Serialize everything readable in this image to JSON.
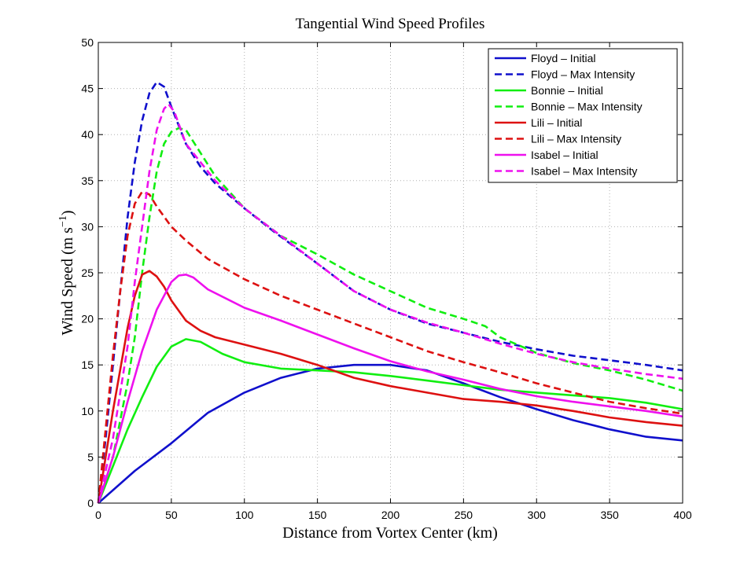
{
  "chart_data": {
    "type": "line",
    "title": "Tangential Wind Speed Profiles",
    "xlabel": "Distance from Vortex Center (km)",
    "ylabel": "Wind Speed (m s",
    "ylabel_exp": "−1",
    "ylabel_close": ")",
    "xlim": [
      0,
      400
    ],
    "ylim": [
      0,
      50
    ],
    "xticks": [
      0,
      50,
      100,
      150,
      200,
      250,
      300,
      350,
      400
    ],
    "yticks": [
      0,
      5,
      10,
      15,
      20,
      25,
      30,
      35,
      40,
      45,
      50
    ],
    "grid": true,
    "legend_position": "top-right",
    "series": [
      {
        "name": "Floyd – Initial",
        "color": "#1010cc",
        "dash": "solid",
        "points": [
          [
            0,
            0
          ],
          [
            25,
            3.5
          ],
          [
            50,
            6.5
          ],
          [
            75,
            9.8
          ],
          [
            100,
            12
          ],
          [
            125,
            13.6
          ],
          [
            150,
            14.6
          ],
          [
            175,
            15
          ],
          [
            200,
            15
          ],
          [
            225,
            14.4
          ],
          [
            250,
            13
          ],
          [
            275,
            11.5
          ],
          [
            300,
            10.2
          ],
          [
            325,
            9
          ],
          [
            350,
            8
          ],
          [
            375,
            7.2
          ],
          [
            400,
            6.8
          ]
        ]
      },
      {
        "name": "Floyd – Max Intensity",
        "color": "#1010cc",
        "dash": "dashed",
        "points": [
          [
            0,
            0
          ],
          [
            5,
            7
          ],
          [
            10,
            15
          ],
          [
            15,
            23
          ],
          [
            20,
            31
          ],
          [
            25,
            37
          ],
          [
            30,
            41.5
          ],
          [
            35,
            44.5
          ],
          [
            40,
            45.7
          ],
          [
            45,
            45.2
          ],
          [
            50,
            43
          ],
          [
            60,
            39
          ],
          [
            70,
            36.5
          ],
          [
            80,
            34.7
          ],
          [
            100,
            32
          ],
          [
            120,
            29.5
          ],
          [
            150,
            26
          ],
          [
            175,
            23
          ],
          [
            200,
            21
          ],
          [
            225,
            19.5
          ],
          [
            250,
            18.5
          ],
          [
            275,
            17.5
          ],
          [
            300,
            16.7
          ],
          [
            325,
            16
          ],
          [
            350,
            15.5
          ],
          [
            375,
            15
          ],
          [
            400,
            14.4
          ]
        ]
      },
      {
        "name": "Bonnie – Initial",
        "color": "#11ee11",
        "dash": "solid",
        "points": [
          [
            0,
            0
          ],
          [
            10,
            4
          ],
          [
            20,
            8
          ],
          [
            30,
            11.5
          ],
          [
            40,
            14.8
          ],
          [
            50,
            17
          ],
          [
            60,
            17.8
          ],
          [
            70,
            17.5
          ],
          [
            85,
            16.2
          ],
          [
            100,
            15.3
          ],
          [
            125,
            14.6
          ],
          [
            150,
            14.4
          ],
          [
            175,
            14.2
          ],
          [
            200,
            13.8
          ],
          [
            225,
            13.3
          ],
          [
            250,
            12.8
          ],
          [
            275,
            12.3
          ],
          [
            300,
            12
          ],
          [
            325,
            11.7
          ],
          [
            350,
            11.4
          ],
          [
            375,
            10.9
          ],
          [
            400,
            10.2
          ]
        ]
      },
      {
        "name": "Bonnie – Max Intensity",
        "color": "#11ee11",
        "dash": "dashed",
        "points": [
          [
            0,
            0
          ],
          [
            10,
            5
          ],
          [
            20,
            13
          ],
          [
            25,
            18
          ],
          [
            30,
            25
          ],
          [
            35,
            31
          ],
          [
            40,
            36
          ],
          [
            45,
            39
          ],
          [
            50,
            40.3
          ],
          [
            55,
            40.7
          ],
          [
            60,
            40.5
          ],
          [
            70,
            38
          ],
          [
            80,
            35.5
          ],
          [
            100,
            32
          ],
          [
            125,
            29
          ],
          [
            150,
            27
          ],
          [
            175,
            24.8
          ],
          [
            200,
            23
          ],
          [
            225,
            21.2
          ],
          [
            250,
            20
          ],
          [
            265,
            19.2
          ],
          [
            275,
            18
          ],
          [
            300,
            16.3
          ],
          [
            325,
            15.2
          ],
          [
            350,
            14.4
          ],
          [
            375,
            13.4
          ],
          [
            400,
            12.2
          ]
        ]
      },
      {
        "name": "Lili – Initial",
        "color": "#dd1111",
        "dash": "solid",
        "points": [
          [
            0,
            0
          ],
          [
            5,
            5
          ],
          [
            10,
            10
          ],
          [
            15,
            14.5
          ],
          [
            20,
            19
          ],
          [
            25,
            22.5
          ],
          [
            30,
            24.8
          ],
          [
            35,
            25.2
          ],
          [
            40,
            24.6
          ],
          [
            45,
            23.5
          ],
          [
            50,
            22
          ],
          [
            60,
            19.8
          ],
          [
            70,
            18.7
          ],
          [
            80,
            18
          ],
          [
            100,
            17.2
          ],
          [
            125,
            16.2
          ],
          [
            150,
            15
          ],
          [
            175,
            13.6
          ],
          [
            200,
            12.7
          ],
          [
            225,
            12
          ],
          [
            250,
            11.3
          ],
          [
            275,
            11
          ],
          [
            300,
            10.6
          ],
          [
            325,
            10
          ],
          [
            350,
            9.3
          ],
          [
            375,
            8.8
          ],
          [
            400,
            8.4
          ]
        ]
      },
      {
        "name": "Lili – Max Intensity",
        "color": "#dd1111",
        "dash": "dashed",
        "points": [
          [
            0,
            0
          ],
          [
            5,
            8
          ],
          [
            10,
            16
          ],
          [
            15,
            23
          ],
          [
            20,
            29
          ],
          [
            25,
            32.5
          ],
          [
            30,
            33.8
          ],
          [
            35,
            33.5
          ],
          [
            40,
            32.2
          ],
          [
            50,
            30
          ],
          [
            60,
            28.5
          ],
          [
            75,
            26.5
          ],
          [
            100,
            24.3
          ],
          [
            125,
            22.5
          ],
          [
            150,
            21
          ],
          [
            175,
            19.5
          ],
          [
            200,
            18
          ],
          [
            225,
            16.5
          ],
          [
            250,
            15.3
          ],
          [
            275,
            14.2
          ],
          [
            300,
            13
          ],
          [
            325,
            12
          ],
          [
            350,
            11
          ],
          [
            375,
            10.3
          ],
          [
            400,
            9.7
          ]
        ]
      },
      {
        "name": "Isabel – Initial",
        "color": "#ee11ee",
        "dash": "solid",
        "points": [
          [
            0,
            0
          ],
          [
            10,
            5
          ],
          [
            20,
            11
          ],
          [
            30,
            16.5
          ],
          [
            40,
            21
          ],
          [
            50,
            24
          ],
          [
            55,
            24.7
          ],
          [
            60,
            24.8
          ],
          [
            65,
            24.5
          ],
          [
            75,
            23.2
          ],
          [
            100,
            21.2
          ],
          [
            125,
            19.8
          ],
          [
            150,
            18.3
          ],
          [
            175,
            16.8
          ],
          [
            200,
            15.4
          ],
          [
            225,
            14.3
          ],
          [
            250,
            13.4
          ],
          [
            275,
            12.4
          ],
          [
            300,
            11.6
          ],
          [
            325,
            11
          ],
          [
            350,
            10.5
          ],
          [
            375,
            10
          ],
          [
            400,
            9.4
          ]
        ]
      },
      {
        "name": "Isabel – Max Intensity",
        "color": "#ee11ee",
        "dash": "dashed",
        "points": [
          [
            0,
            0
          ],
          [
            10,
            7
          ],
          [
            20,
            17
          ],
          [
            25,
            24
          ],
          [
            30,
            30
          ],
          [
            35,
            36
          ],
          [
            40,
            40.5
          ],
          [
            45,
            42.8
          ],
          [
            48,
            43.3
          ],
          [
            52,
            42.5
          ],
          [
            60,
            39
          ],
          [
            70,
            37
          ],
          [
            80,
            35
          ],
          [
            100,
            32
          ],
          [
            125,
            29
          ],
          [
            150,
            26
          ],
          [
            175,
            23
          ],
          [
            200,
            21
          ],
          [
            225,
            19.6
          ],
          [
            250,
            18.5
          ],
          [
            275,
            17.3
          ],
          [
            300,
            16.2
          ],
          [
            325,
            15.3
          ],
          [
            350,
            14.6
          ],
          [
            375,
            14
          ],
          [
            400,
            13.5
          ]
        ]
      }
    ]
  }
}
